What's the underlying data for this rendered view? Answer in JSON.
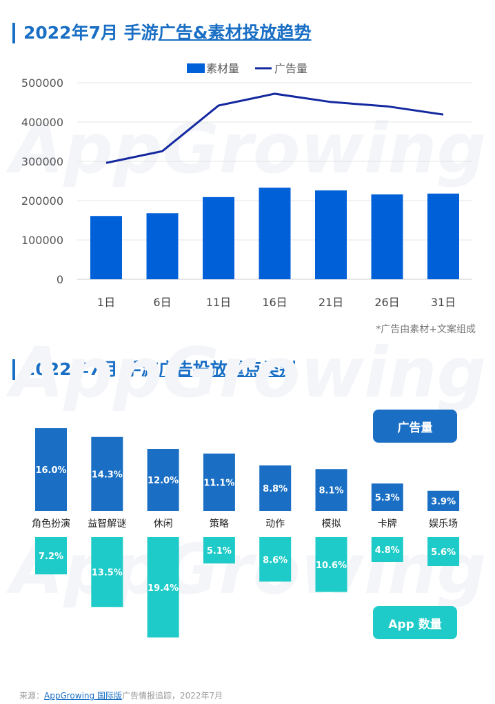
{
  "title1": {
    "prefix": "2022年7月 手游",
    "underlined": "广告&素材投放趋势"
  },
  "title2": {
    "prefix": "2022年7月 手游",
    "underlined": "广告投放重点类别"
  },
  "colors": {
    "bar": "#0060d8",
    "line": "#1428a0",
    "ad_share": "#1a6fc4",
    "app_share": "#1ecbc8",
    "title": "#1a6fc4"
  },
  "chart_data": [
    {
      "type": "bar+line",
      "categories": [
        "1日",
        "6日",
        "11日",
        "16日",
        "21日",
        "26日",
        "31日"
      ],
      "series": [
        {
          "name": "素材量",
          "type": "bar",
          "values": [
            161000,
            168000,
            209000,
            233000,
            226000,
            216000,
            218000
          ]
        },
        {
          "name": "广告量",
          "type": "line",
          "values": [
            296000,
            326000,
            442000,
            472000,
            451000,
            440000,
            419000
          ]
        }
      ],
      "yticks": [
        "0",
        "100000",
        "200000",
        "300000",
        "400000",
        "500000"
      ],
      "ylim": [
        0,
        500000
      ],
      "grid": true,
      "legend": "top-center"
    },
    {
      "type": "bar",
      "categories": [
        "角色扮演",
        "益智解谜",
        "休闲",
        "策略",
        "动作",
        "模拟",
        "卡牌",
        "娱乐场"
      ],
      "series": [
        {
          "name": "广告量",
          "values": [
            16.0,
            14.3,
            12.0,
            11.1,
            8.8,
            8.1,
            5.3,
            3.9
          ],
          "labels": [
            "16.0%",
            "14.3%",
            "12.0%",
            "11.1%",
            "8.8%",
            "8.1%",
            "5.3%",
            "3.9%"
          ]
        },
        {
          "name": "App 数量",
          "values": [
            7.2,
            13.5,
            19.4,
            5.1,
            8.6,
            10.6,
            4.8,
            5.6
          ],
          "labels": [
            "7.2%",
            "13.5%",
            "19.4%",
            "5.1%",
            "8.6%",
            "10.6%",
            "4.8%",
            "5.6%"
          ]
        }
      ],
      "unit": "%"
    }
  ],
  "note": "*广告由素材+文案组成",
  "watermark": "AppGrowing",
  "source": {
    "prefix": "来源：",
    "link": "AppGrowing 国际版",
    "suffix": "广告情报追踪，2022年7月"
  }
}
